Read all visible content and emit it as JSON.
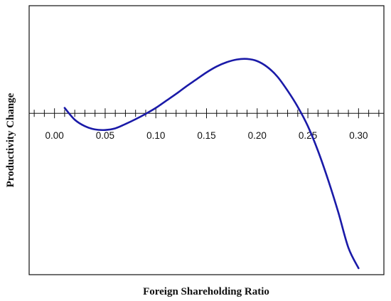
{
  "chart_data": {
    "type": "line",
    "title": "",
    "xlabel": "Foreign Shareholding Ratio",
    "ylabel": "Productivity Change",
    "xlim": [
      -0.025,
      0.325
    ],
    "ylim": [
      -1.5,
      1.0
    ],
    "x_ticks": [
      "0.00",
      "0.05",
      "0.10",
      "0.15",
      "0.20",
      "0.25",
      "0.30"
    ],
    "x_tick_values": [
      0.0,
      0.05,
      0.1,
      0.15,
      0.2,
      0.25,
      0.3
    ],
    "minor_tick_step": 0.01,
    "grid": false,
    "legend": "none",
    "series": [
      {
        "color": "#1a1aa8",
        "x": [
          0.01,
          0.02,
          0.03,
          0.04,
          0.05,
          0.06,
          0.07,
          0.08,
          0.09,
          0.1,
          0.11,
          0.12,
          0.13,
          0.14,
          0.15,
          0.16,
          0.17,
          0.18,
          0.19,
          0.2,
          0.21,
          0.22,
          0.23,
          0.24,
          0.25,
          0.26,
          0.27,
          0.28,
          0.29,
          0.3
        ],
        "y": [
          0.05,
          -0.06,
          -0.12,
          -0.15,
          -0.155,
          -0.14,
          -0.1,
          -0.055,
          -0.005,
          0.05,
          0.115,
          0.18,
          0.25,
          0.315,
          0.38,
          0.435,
          0.475,
          0.5,
          0.505,
          0.485,
          0.43,
          0.34,
          0.21,
          0.06,
          -0.12,
          -0.35,
          -0.62,
          -0.92,
          -1.25,
          -1.44
        ]
      }
    ]
  }
}
